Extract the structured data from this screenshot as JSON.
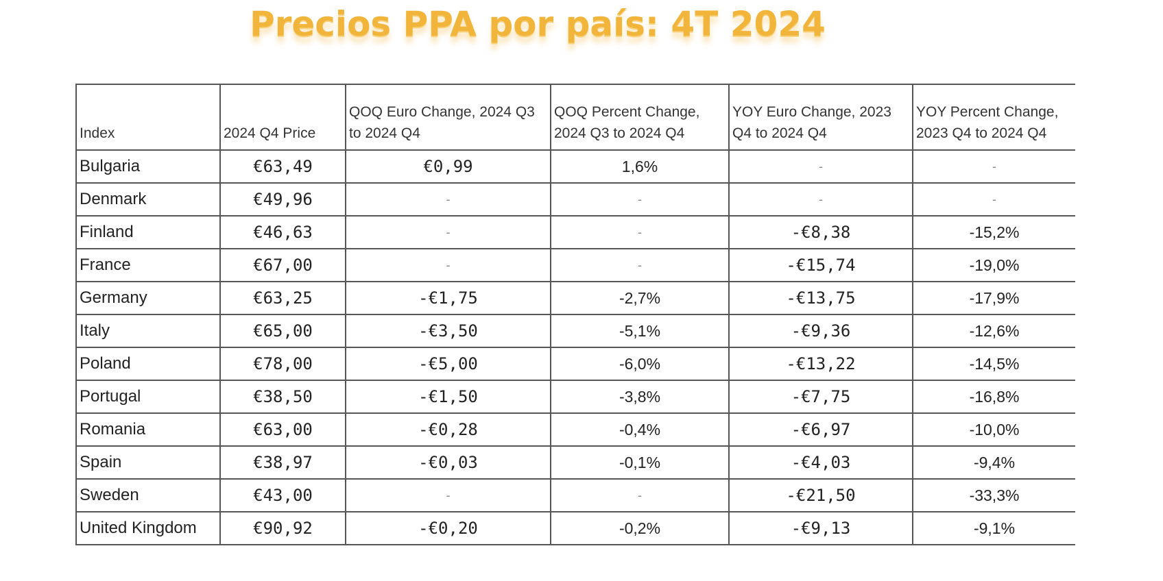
{
  "title": "Precios PPA por país: 4T 2024",
  "table": {
    "headers": [
      "Index",
      "2024 Q4 Price",
      "QOQ Euro Change, 2024 Q3 to 2024 Q4",
      "QOQ Percent Change, 2024 Q3 to 2024 Q4",
      "YOY Euro Change, 2023 Q4 to 2024 Q4",
      "YOY Percent Change, 2023 Q4 to 2024 Q4"
    ],
    "rows": [
      [
        "Bulgaria",
        "€63,49",
        "€0,99",
        "1,6%",
        "-",
        "-"
      ],
      [
        "Denmark",
        "€49,96",
        "-",
        "-",
        "-",
        "-"
      ],
      [
        "Finland",
        "€46,63",
        "-",
        "-",
        "-€8,38",
        "-15,2%"
      ],
      [
        "France",
        "€67,00",
        "-",
        "-",
        "-€15,74",
        "-19,0%"
      ],
      [
        "Germany",
        "€63,25",
        "-€1,75",
        "-2,7%",
        "-€13,75",
        "-17,9%"
      ],
      [
        "Italy",
        "€65,00",
        "-€3,50",
        "-5,1%",
        "-€9,36",
        "-12,6%"
      ],
      [
        "Poland",
        "€78,00",
        "-€5,00",
        "-6,0%",
        "-€13,22",
        "-14,5%"
      ],
      [
        "Portugal",
        "€38,50",
        "-€1,50",
        "-3,8%",
        "-€7,75",
        "-16,8%"
      ],
      [
        "Romania",
        "€63,00",
        "-€0,28",
        "-0,4%",
        "-€6,97",
        "-10,0%"
      ],
      [
        "Spain",
        "€38,97",
        "-€0,03",
        "-0,1%",
        "-€4,03",
        "-9,4%"
      ],
      [
        "Sweden",
        "€43,00",
        "-",
        "-",
        "-€21,50",
        "-33,3%"
      ],
      [
        "United Kingdom",
        "€90,92",
        "-€0,20",
        "-0,2%",
        "-€9,13",
        "-9,1%"
      ]
    ]
  },
  "colors": {
    "title": "#f2b53b",
    "grid": "#555555"
  }
}
